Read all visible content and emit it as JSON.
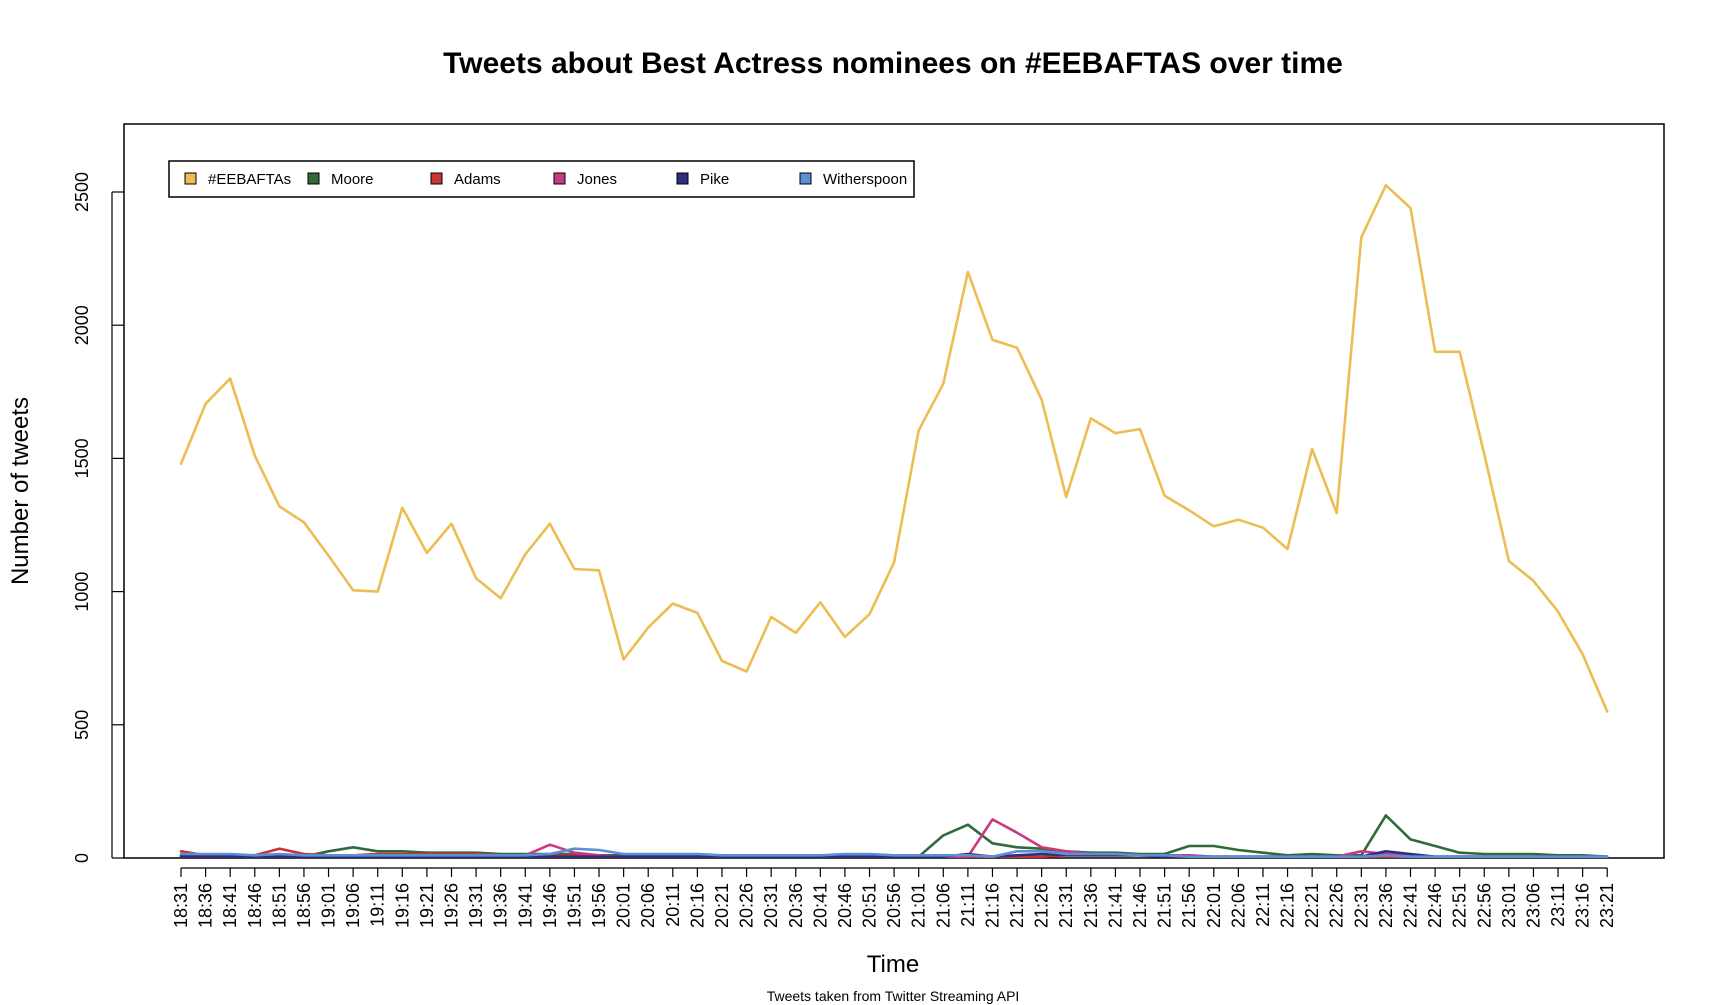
{
  "chart_data": {
    "type": "line",
    "title": "Tweets about Best Actress nominees on #EEBAFTAS over time",
    "xlabel": "Time",
    "ylabel": "Number of tweets",
    "caption": "Tweets taken from Twitter Streaming API",
    "ylim": [
      0,
      2750
    ],
    "yticks": [
      0,
      500,
      1000,
      1500,
      2000,
      2500
    ],
    "grid": false,
    "legend_position": "top-left",
    "categories": [
      "18:31",
      "18:36",
      "18:41",
      "18:46",
      "18:51",
      "18:56",
      "19:01",
      "19:06",
      "19:11",
      "19:16",
      "19:21",
      "19:26",
      "19:31",
      "19:36",
      "19:41",
      "19:46",
      "19:51",
      "19:56",
      "20:01",
      "20:06",
      "20:11",
      "20:16",
      "20:21",
      "20:26",
      "20:31",
      "20:36",
      "20:41",
      "20:46",
      "20:51",
      "20:56",
      "21:01",
      "21:06",
      "21:11",
      "21:16",
      "21:21",
      "21:26",
      "21:31",
      "21:36",
      "21:41",
      "21:46",
      "21:51",
      "21:56",
      "22:01",
      "22:06",
      "22:11",
      "22:16",
      "22:21",
      "22:26",
      "22:31",
      "22:36",
      "22:41",
      "22:46",
      "22:51",
      "22:56",
      "23:01",
      "23:06",
      "23:11",
      "23:16",
      "23:21"
    ],
    "series": [
      {
        "name": "#EEBAFTAs",
        "color": "#EDBD53",
        "values": [
          1480,
          1705,
          1800,
          1510,
          1320,
          1260,
          1135,
          1005,
          1000,
          1315,
          1145,
          1255,
          1050,
          975,
          1140,
          1255,
          1085,
          1080,
          745,
          865,
          955,
          920,
          740,
          700,
          905,
          845,
          960,
          830,
          915,
          1110,
          1605,
          1780,
          2200,
          1945,
          1915,
          1720,
          1355,
          1650,
          1595,
          1610,
          1360,
          1305,
          1245,
          1270,
          1240,
          1160,
          1535,
          1295,
          2330,
          2525,
          2440,
          1900,
          1900,
          1515,
          1115,
          1040,
          925,
          765,
          550
        ]
      },
      {
        "name": "Moore",
        "color": "#2F6A3A",
        "values": [
          10,
          10,
          10,
          10,
          10,
          5,
          25,
          40,
          25,
          25,
          20,
          20,
          20,
          15,
          15,
          15,
          15,
          10,
          10,
          10,
          10,
          10,
          10,
          10,
          5,
          5,
          5,
          5,
          5,
          5,
          5,
          85,
          125,
          55,
          40,
          35,
          25,
          20,
          20,
          15,
          15,
          45,
          45,
          30,
          20,
          10,
          15,
          10,
          10,
          160,
          70,
          45,
          20,
          15,
          15,
          15,
          10,
          10,
          5
        ]
      },
      {
        "name": "Adams",
        "color": "#CC3333",
        "values": [
          25,
          10,
          10,
          10,
          35,
          15,
          10,
          10,
          15,
          15,
          15,
          15,
          15,
          10,
          10,
          10,
          10,
          5,
          5,
          5,
          5,
          5,
          5,
          5,
          5,
          5,
          10,
          5,
          5,
          5,
          5,
          5,
          5,
          5,
          5,
          5,
          10,
          10,
          10,
          10,
          5,
          5,
          5,
          5,
          5,
          5,
          5,
          5,
          5,
          5,
          5,
          5,
          5,
          5,
          5,
          5,
          5,
          5,
          5
        ]
      },
      {
        "name": "Jones",
        "color": "#C93B81",
        "values": [
          5,
          5,
          5,
          5,
          5,
          5,
          5,
          5,
          5,
          5,
          5,
          5,
          5,
          5,
          10,
          50,
          20,
          10,
          5,
          5,
          5,
          5,
          5,
          5,
          5,
          5,
          5,
          5,
          5,
          5,
          5,
          5,
          5,
          145,
          95,
          40,
          25,
          15,
          15,
          10,
          10,
          10,
          5,
          5,
          5,
          5,
          5,
          5,
          25,
          15,
          10,
          5,
          5,
          5,
          5,
          5,
          5,
          5,
          5
        ]
      },
      {
        "name": "Pike",
        "color": "#2E2E7E",
        "values": [
          5,
          5,
          5,
          5,
          5,
          5,
          5,
          5,
          5,
          5,
          5,
          5,
          5,
          5,
          5,
          5,
          5,
          5,
          5,
          5,
          5,
          5,
          5,
          5,
          5,
          5,
          5,
          5,
          5,
          5,
          5,
          5,
          15,
          5,
          10,
          15,
          10,
          10,
          10,
          10,
          5,
          5,
          5,
          5,
          5,
          5,
          5,
          5,
          5,
          25,
          15,
          5,
          5,
          5,
          5,
          5,
          5,
          5,
          5
        ]
      },
      {
        "name": "Witherspoon",
        "color": "#5B8FD6",
        "values": [
          15,
          15,
          15,
          10,
          15,
          10,
          10,
          10,
          10,
          10,
          10,
          10,
          10,
          10,
          10,
          15,
          35,
          30,
          15,
          15,
          15,
          15,
          10,
          10,
          10,
          10,
          10,
          15,
          15,
          10,
          10,
          10,
          10,
          5,
          25,
          25,
          15,
          15,
          15,
          10,
          10,
          5,
          5,
          5,
          5,
          5,
          5,
          5,
          5,
          10,
          5,
          5,
          5,
          5,
          5,
          5,
          5,
          5,
          5
        ]
      }
    ]
  }
}
